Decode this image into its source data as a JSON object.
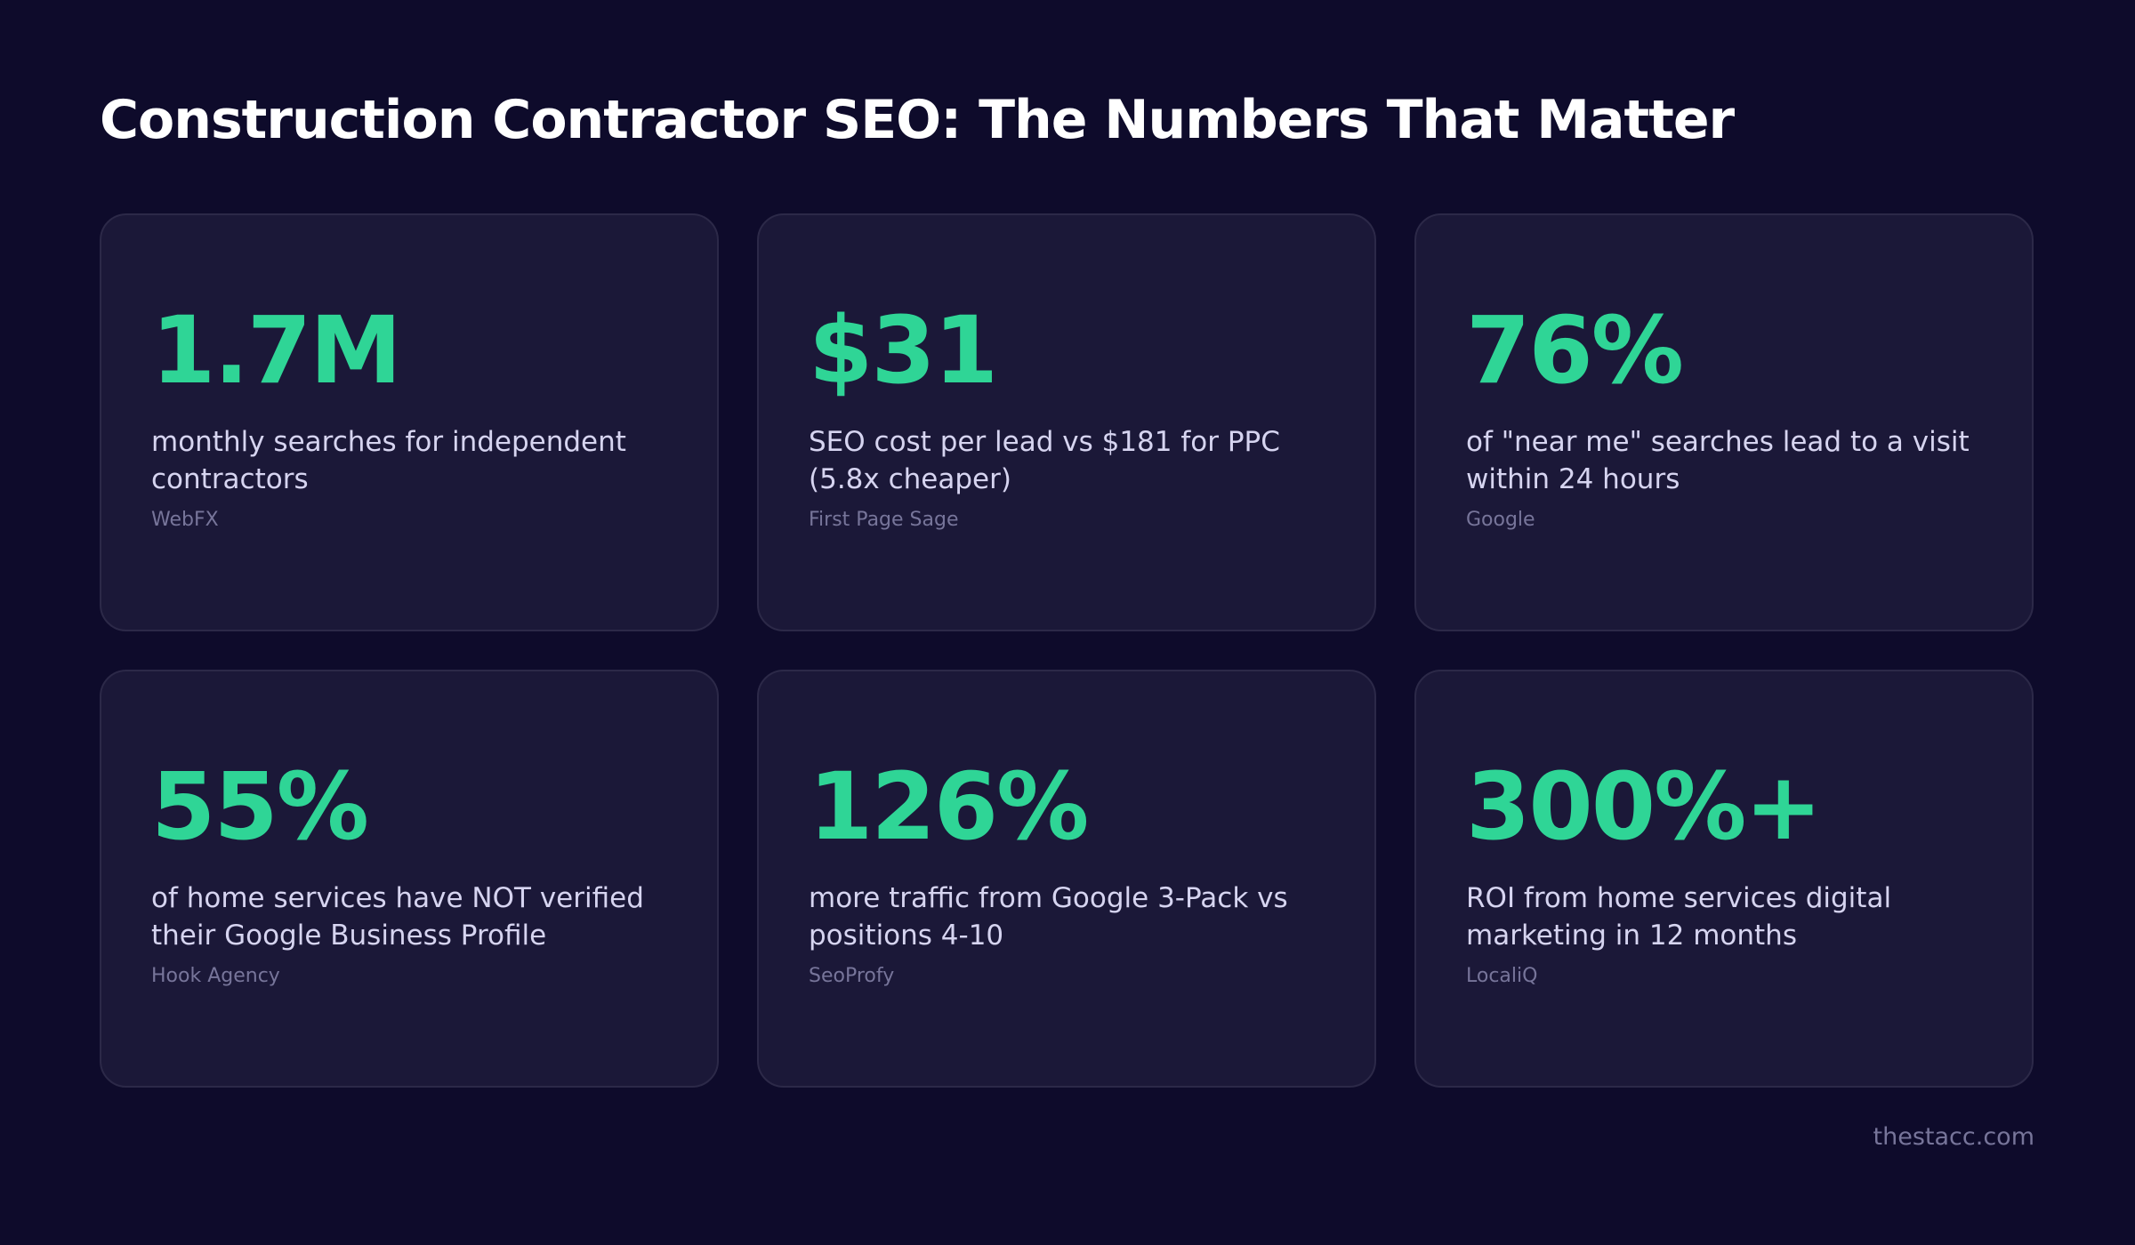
{
  "header": {
    "title": "Construction Contractor SEO: The Numbers That Matter"
  },
  "cards": [
    {
      "stat": "1.7M",
      "description": "monthly searches for independent contractors",
      "source": "WebFX"
    },
    {
      "stat": "$31",
      "description": "SEO cost per lead vs $181 for PPC (5.8x cheaper)",
      "source": "First Page Sage"
    },
    {
      "stat": "76%",
      "description": "of \"near me\" searches lead to a visit within 24 hours",
      "source": "Google"
    },
    {
      "stat": "55%",
      "description": "of home services have NOT verified their Google Business Profile",
      "source": "Hook Agency"
    },
    {
      "stat": "126%",
      "description": "more traffic from Google 3-Pack vs positions 4-10",
      "source": "SeoProfy"
    },
    {
      "stat": "300%+",
      "description": "ROI from home services digital marketing in 12 months",
      "source": "LocaliQ"
    }
  ],
  "footer": {
    "text": "thestacc.com"
  }
}
